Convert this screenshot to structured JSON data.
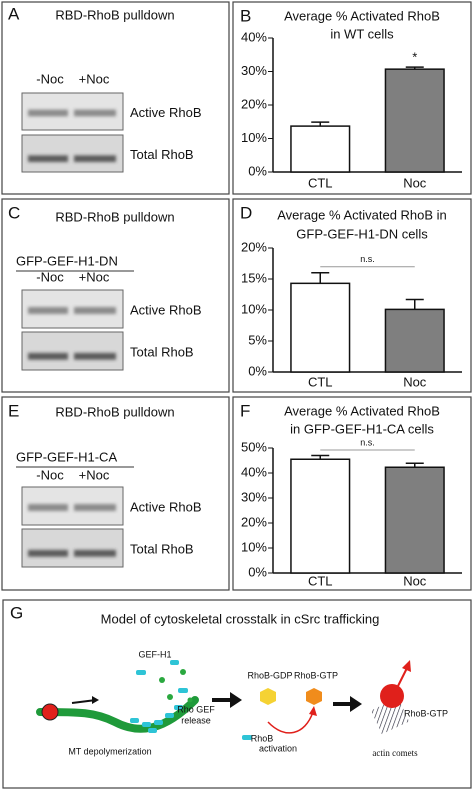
{
  "panels": {
    "A": {
      "label": "A",
      "title": "RBD-RhoB pulldown",
      "lanes": [
        "-Noc",
        "+Noc"
      ],
      "rows": [
        "Active RhoB",
        "Total RhoB"
      ]
    },
    "C": {
      "label": "C",
      "title": "RBD-RhoB pulldown",
      "construct": "GFP-GEF-H1-DN",
      "lanes": [
        "-Noc",
        "+Noc"
      ],
      "rows": [
        "Active RhoB",
        "Total RhoB"
      ]
    },
    "E": {
      "label": "E",
      "title": "RBD-RhoB pulldown",
      "construct": "GFP-GEF-H1-CA",
      "lanes": [
        "-Noc",
        "+Noc"
      ],
      "rows": [
        "Active RhoB",
        "Total RhoB"
      ]
    },
    "G": {
      "label": "G",
      "title": "Model of cytoskeletal crosstalk in cSrc trafficking",
      "gef": "GEF-H1",
      "release": [
        "Rho GEF",
        "release"
      ],
      "mt": "MT depolymerization",
      "gdp": "RhoB-GDP",
      "gtp": "RhoB-GTP",
      "activation": [
        "RhoB",
        "activation"
      ],
      "gtp2": "RhoB-GTP",
      "comets": "actin comets"
    }
  },
  "chart_data": [
    {
      "type": "bar",
      "label": "B",
      "title": [
        "Average % Activated RhoB",
        "in WT cells"
      ],
      "categories": [
        "CTL",
        "Noc"
      ],
      "values": [
        13.7,
        30.7
      ],
      "errors": [
        1.2,
        0.6
      ],
      "colors": [
        "#ffffff",
        "#7f7f7f"
      ],
      "significance": "*",
      "ylim": [
        0,
        40
      ],
      "yticks": [
        {
          "value": 0,
          "label": "0%"
        },
        {
          "value": 10,
          "label": "10%"
        },
        {
          "value": 20,
          "label": "20%"
        },
        {
          "value": 30,
          "label": "30%"
        },
        {
          "value": 40,
          "label": "40%"
        }
      ]
    },
    {
      "type": "bar",
      "label": "D",
      "title": [
        "Average % Activated RhoB in",
        "GFP-GEF-H1-DN cells"
      ],
      "categories": [
        "CTL",
        "Noc"
      ],
      "values": [
        14.3,
        10.1
      ],
      "errors": [
        1.7,
        1.6
      ],
      "colors": [
        "#ffffff",
        "#7f7f7f"
      ],
      "comparison": "n.s.",
      "ylim": [
        0,
        20
      ],
      "yticks": [
        {
          "value": 0,
          "label": "0%"
        },
        {
          "value": 5,
          "label": "5%"
        },
        {
          "value": 10,
          "label": "10%"
        },
        {
          "value": 15,
          "label": "15%"
        },
        {
          "value": 20,
          "label": "20%"
        }
      ]
    },
    {
      "type": "bar",
      "label": "F",
      "title": [
        "Average % Activated RhoB",
        "in GFP-GEF-H1-CA cells"
      ],
      "categories": [
        "CTL",
        "Noc"
      ],
      "values": [
        45.5,
        42.3
      ],
      "errors": [
        1.5,
        1.6
      ],
      "colors": [
        "#ffffff",
        "#7f7f7f"
      ],
      "comparison": "n.s.",
      "ylim": [
        0,
        50
      ],
      "yticks": [
        {
          "value": 0,
          "label": "0%"
        },
        {
          "value": 10,
          "label": "10%"
        },
        {
          "value": 20,
          "label": "20%"
        },
        {
          "value": 30,
          "label": "30%"
        },
        {
          "value": 40,
          "label": "40%"
        },
        {
          "value": 50,
          "label": "50%"
        }
      ]
    }
  ]
}
